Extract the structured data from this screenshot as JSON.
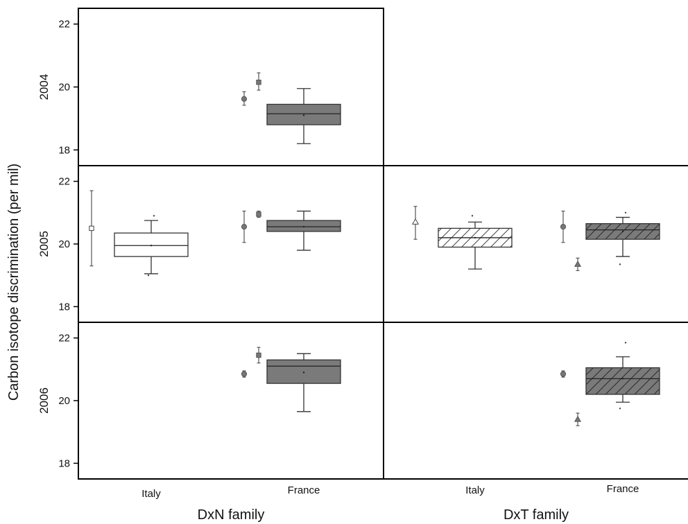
{
  "chart_data": {
    "type": "box",
    "y_axis_label": "Carbon isotope discrimination (per mil)",
    "y_range": [
      17.5,
      22.5
    ],
    "y_ticks": [
      18,
      20,
      22
    ],
    "families": [
      "DxN family",
      "DxT family"
    ],
    "origins": [
      "Italy",
      "France"
    ],
    "years": [
      "2004",
      "2005",
      "2006"
    ],
    "panel_border_color": "#000000",
    "italy_box_color": "#ffffff",
    "france_box_color": "#7a7a7a",
    "panels": [
      {
        "year": "2004",
        "family": "DxN family",
        "empty": false,
        "boxes": [
          {
            "origin": "France",
            "q1": 18.8,
            "median": 19.15,
            "q3": 19.45,
            "whisker_low": 18.2,
            "whisker_high": 19.95,
            "mean": 19.1,
            "outliers": [],
            "hatched": false
          }
        ],
        "markers": [
          {
            "origin": "France",
            "offset": "left",
            "shape": "circle",
            "mean": 19.62,
            "low": 19.42,
            "high": 19.85
          },
          {
            "origin": "France",
            "offset": "mid",
            "shape": "square",
            "mean": 20.15,
            "low": 19.9,
            "high": 20.45
          }
        ]
      },
      {
        "year": "2004",
        "family": "DxT family",
        "empty": true,
        "boxes": [],
        "markers": []
      },
      {
        "year": "2005",
        "family": "DxN family",
        "empty": false,
        "boxes": [
          {
            "origin": "Italy",
            "q1": 19.6,
            "median": 19.95,
            "q3": 20.35,
            "whisker_low": 19.05,
            "whisker_high": 20.75,
            "mean": 19.95,
            "outliers": [
              19.0,
              20.9
            ],
            "hatched": false
          },
          {
            "origin": "France",
            "q1": 20.4,
            "median": 20.55,
            "q3": 20.75,
            "whisker_low": 19.8,
            "whisker_high": 21.05,
            "mean": 20.55,
            "outliers": [],
            "hatched": false
          }
        ],
        "markers": [
          {
            "origin": "Italy",
            "offset": "left",
            "shape": "square-open",
            "mean": 20.5,
            "low": 19.3,
            "high": 21.7
          },
          {
            "origin": "France",
            "offset": "left",
            "shape": "circle",
            "mean": 20.55,
            "low": 20.05,
            "high": 21.05
          },
          {
            "origin": "France",
            "offset": "mid",
            "shape": "square",
            "mean": 20.95,
            "low": 20.85,
            "high": 21.05
          }
        ]
      },
      {
        "year": "2005",
        "family": "DxT family",
        "empty": false,
        "boxes": [
          {
            "origin": "Italy",
            "q1": 19.9,
            "median": 20.2,
            "q3": 20.5,
            "whisker_low": 19.2,
            "whisker_high": 20.7,
            "mean": 20.2,
            "outliers": [
              20.9
            ],
            "hatched": true
          },
          {
            "origin": "France",
            "q1": 20.15,
            "median": 20.45,
            "q3": 20.65,
            "whisker_low": 19.6,
            "whisker_high": 20.85,
            "mean": 20.4,
            "outliers": [
              19.35,
              21.0
            ],
            "hatched": true
          }
        ],
        "markers": [
          {
            "origin": "Italy",
            "offset": "left",
            "shape": "triangle-open",
            "mean": 20.7,
            "low": 20.15,
            "high": 21.2
          },
          {
            "origin": "France",
            "offset": "left",
            "shape": "circle",
            "mean": 20.55,
            "low": 20.05,
            "high": 21.05
          },
          {
            "origin": "France",
            "offset": "mid",
            "shape": "triangle",
            "mean": 19.35,
            "low": 19.15,
            "high": 19.55
          }
        ]
      },
      {
        "year": "2006",
        "family": "DxN family",
        "empty": false,
        "boxes": [
          {
            "origin": "France",
            "q1": 20.55,
            "median": 21.1,
            "q3": 21.3,
            "whisker_low": 19.65,
            "whisker_high": 21.5,
            "mean": 20.9,
            "outliers": [],
            "hatched": false
          }
        ],
        "markers": [
          {
            "origin": "France",
            "offset": "left",
            "shape": "circle",
            "mean": 20.85,
            "low": 20.75,
            "high": 20.95
          },
          {
            "origin": "France",
            "offset": "mid",
            "shape": "square",
            "mean": 21.45,
            "low": 21.2,
            "high": 21.7
          }
        ]
      },
      {
        "year": "2006",
        "family": "DxT family",
        "empty": false,
        "boxes": [
          {
            "origin": "France",
            "q1": 20.2,
            "median": 20.7,
            "q3": 21.05,
            "whisker_low": 19.95,
            "whisker_high": 21.4,
            "mean": 20.7,
            "outliers": [
              19.75,
              21.85
            ],
            "hatched": true
          }
        ],
        "markers": [
          {
            "origin": "France",
            "offset": "left",
            "shape": "circle",
            "mean": 20.85,
            "low": 20.75,
            "high": 20.95
          },
          {
            "origin": "France",
            "offset": "mid",
            "shape": "triangle",
            "mean": 19.4,
            "low": 19.2,
            "high": 19.6
          }
        ]
      }
    ]
  }
}
